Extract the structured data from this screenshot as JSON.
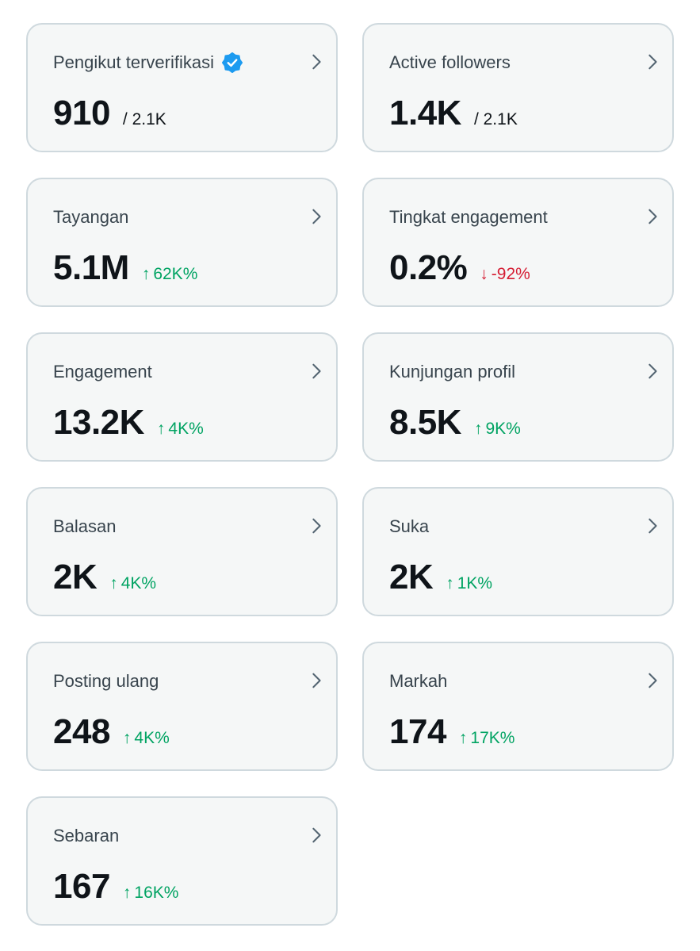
{
  "colors": {
    "card_bg": "#f5f7f7",
    "card_border": "#cfd9de",
    "positive": "#00a362",
    "negative": "#d51d33",
    "verified": "#1d9bf0",
    "chevron": "#536471"
  },
  "cards": [
    {
      "title": "Pengikut terverifikasi",
      "verified": true,
      "value": "910",
      "sub": "/ 2.1K",
      "change": null,
      "direction": null,
      "icon": "chevron-right-icon"
    },
    {
      "title": "Active followers",
      "verified": false,
      "value": "1.4K",
      "sub": "/ 2.1K",
      "change": null,
      "direction": null,
      "icon": "chevron-right-icon"
    },
    {
      "title": "Tayangan",
      "verified": false,
      "value": "5.1M",
      "sub": null,
      "change": "62K%",
      "direction": "up",
      "icon": "chevron-right-icon"
    },
    {
      "title": "Tingkat engagement",
      "verified": false,
      "value": "0.2%",
      "sub": null,
      "change": "-92%",
      "direction": "down",
      "icon": "chevron-right-icon"
    },
    {
      "title": "Engagement",
      "verified": false,
      "value": "13.2K",
      "sub": null,
      "change": "4K%",
      "direction": "up",
      "icon": "chevron-right-icon"
    },
    {
      "title": "Kunjungan profil",
      "verified": false,
      "value": "8.5K",
      "sub": null,
      "change": "9K%",
      "direction": "up",
      "icon": "chevron-right-icon"
    },
    {
      "title": "Balasan",
      "verified": false,
      "value": "2K",
      "sub": null,
      "change": "4K%",
      "direction": "up",
      "icon": "chevron-right-icon"
    },
    {
      "title": "Suka",
      "verified": false,
      "value": "2K",
      "sub": null,
      "change": "1K%",
      "direction": "up",
      "icon": "chevron-right-icon"
    },
    {
      "title": "Posting ulang",
      "verified": false,
      "value": "248",
      "sub": null,
      "change": "4K%",
      "direction": "up",
      "icon": "chevron-right-icon"
    },
    {
      "title": "Markah",
      "verified": false,
      "value": "174",
      "sub": null,
      "change": "17K%",
      "direction": "up",
      "icon": "chevron-right-icon"
    },
    {
      "title": "Sebaran",
      "verified": false,
      "value": "167",
      "sub": null,
      "change": "16K%",
      "direction": "up",
      "icon": "chevron-right-icon"
    }
  ]
}
